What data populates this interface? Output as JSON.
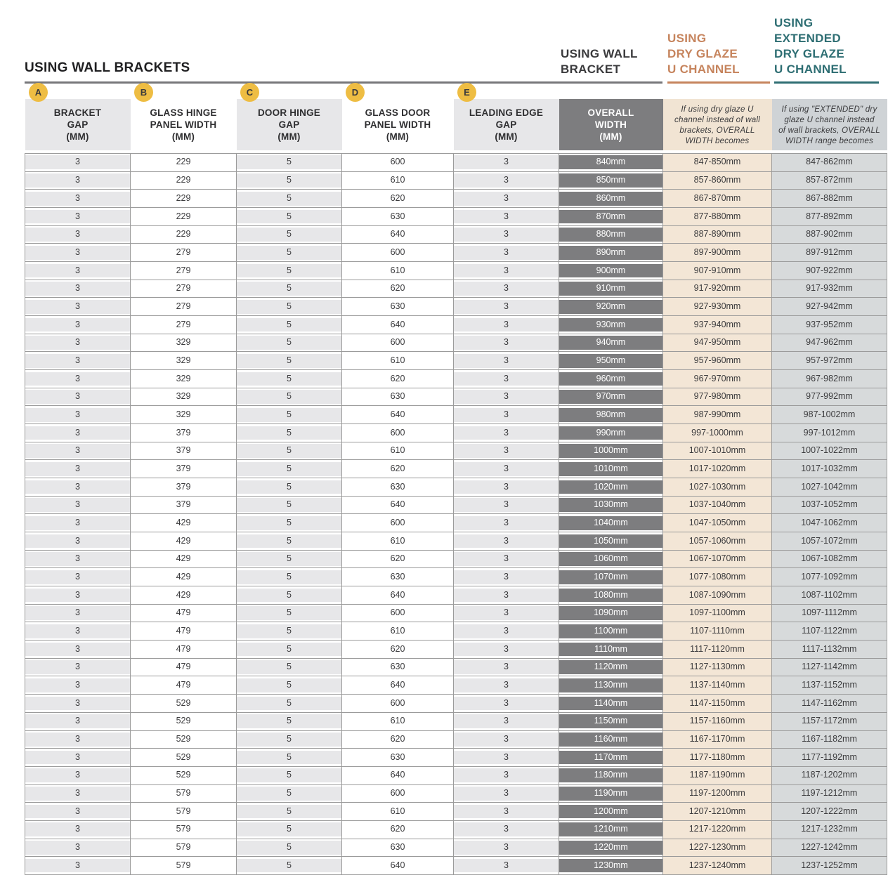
{
  "page_title": "USING WALL BRACKETS",
  "colors": {
    "wall_bracket_heading": "#3a3a3c",
    "dry_glaze_heading": "#c6845d",
    "extended_heading": "#2e6e73",
    "badge": "#eebd43",
    "gap_column_bg": "#e7e7e9",
    "overall_column_bg": "#7d7d7f",
    "dry_glaze_column_bg": "#f3e6d6",
    "extended_column_bg": "#d7dadb",
    "row_border": "#9b9b9b"
  },
  "group_headers": {
    "wall_bracket": {
      "lines": [
        "USING WALL",
        "BRACKET"
      ],
      "color": "#3a3a3c"
    },
    "dry_glaze": {
      "lines": [
        "USING",
        "DRY GLAZE",
        "U CHANNEL"
      ],
      "color": "#c6845d"
    },
    "extended_dry_glaze": {
      "lines": [
        "USING",
        "EXTENDED",
        "DRY GLAZE",
        "U CHANNEL"
      ],
      "color": "#2e6e73"
    }
  },
  "columns": [
    {
      "id": "bracket-gap",
      "badge": "A",
      "lines": [
        "BRACKET",
        "GAP",
        "(MM)"
      ],
      "type": "gap"
    },
    {
      "id": "glass-hinge-panel-width",
      "badge": "B",
      "lines": [
        "GLASS HINGE",
        "PANEL WIDTH",
        "(MM)"
      ],
      "type": "white"
    },
    {
      "id": "door-hinge-gap",
      "badge": "C",
      "lines": [
        "DOOR HINGE",
        "GAP",
        "(MM)"
      ],
      "type": "gap"
    },
    {
      "id": "glass-door-panel-width",
      "badge": "D",
      "lines": [
        "GLASS DOOR",
        "PANEL WIDTH",
        "(MM)"
      ],
      "type": "white"
    },
    {
      "id": "leading-edge-gap",
      "badge": "E",
      "lines": [
        "LEADING EDGE",
        "GAP",
        "(MM)"
      ],
      "type": "gap"
    },
    {
      "id": "overall-width",
      "lines": [
        "OVERALL",
        "WIDTH",
        "(MM)"
      ],
      "type": "overall"
    },
    {
      "id": "dry-glaze-width",
      "lines": [
        "If using dry glaze U",
        "channel instead of wall",
        "brackets, OVERALL",
        "WIDTH becomes"
      ],
      "type": "dry",
      "italic": true
    },
    {
      "id": "extended-dry-glaze-width",
      "lines": [
        "If using \"EXTENDED\" dry",
        "glaze U channel instead",
        "of wall brackets, OVERALL",
        "WIDTH range becomes"
      ],
      "type": "ext",
      "italic": true
    }
  ],
  "table": {
    "rows": [
      [
        "3",
        "229",
        "5",
        "600",
        "3",
        "840mm",
        "847-850mm",
        "847-862mm"
      ],
      [
        "3",
        "229",
        "5",
        "610",
        "3",
        "850mm",
        "857-860mm",
        "857-872mm"
      ],
      [
        "3",
        "229",
        "5",
        "620",
        "3",
        "860mm",
        "867-870mm",
        "867-882mm"
      ],
      [
        "3",
        "229",
        "5",
        "630",
        "3",
        "870mm",
        "877-880mm",
        "877-892mm"
      ],
      [
        "3",
        "229",
        "5",
        "640",
        "3",
        "880mm",
        "887-890mm",
        "887-902mm"
      ],
      [
        "3",
        "279",
        "5",
        "600",
        "3",
        "890mm",
        "897-900mm",
        "897-912mm"
      ],
      [
        "3",
        "279",
        "5",
        "610",
        "3",
        "900mm",
        "907-910mm",
        "907-922mm"
      ],
      [
        "3",
        "279",
        "5",
        "620",
        "3",
        "910mm",
        "917-920mm",
        "917-932mm"
      ],
      [
        "3",
        "279",
        "5",
        "630",
        "3",
        "920mm",
        "927-930mm",
        "927-942mm"
      ],
      [
        "3",
        "279",
        "5",
        "640",
        "3",
        "930mm",
        "937-940mm",
        "937-952mm"
      ],
      [
        "3",
        "329",
        "5",
        "600",
        "3",
        "940mm",
        "947-950mm",
        "947-962mm"
      ],
      [
        "3",
        "329",
        "5",
        "610",
        "3",
        "950mm",
        "957-960mm",
        "957-972mm"
      ],
      [
        "3",
        "329",
        "5",
        "620",
        "3",
        "960mm",
        "967-970mm",
        "967-982mm"
      ],
      [
        "3",
        "329",
        "5",
        "630",
        "3",
        "970mm",
        "977-980mm",
        "977-992mm"
      ],
      [
        "3",
        "329",
        "5",
        "640",
        "3",
        "980mm",
        "987-990mm",
        "987-1002mm"
      ],
      [
        "3",
        "379",
        "5",
        "600",
        "3",
        "990mm",
        "997-1000mm",
        "997-1012mm"
      ],
      [
        "3",
        "379",
        "5",
        "610",
        "3",
        "1000mm",
        "1007-1010mm",
        "1007-1022mm"
      ],
      [
        "3",
        "379",
        "5",
        "620",
        "3",
        "1010mm",
        "1017-1020mm",
        "1017-1032mm"
      ],
      [
        "3",
        "379",
        "5",
        "630",
        "3",
        "1020mm",
        "1027-1030mm",
        "1027-1042mm"
      ],
      [
        "3",
        "379",
        "5",
        "640",
        "3",
        "1030mm",
        "1037-1040mm",
        "1037-1052mm"
      ],
      [
        "3",
        "429",
        "5",
        "600",
        "3",
        "1040mm",
        "1047-1050mm",
        "1047-1062mm"
      ],
      [
        "3",
        "429",
        "5",
        "610",
        "3",
        "1050mm",
        "1057-1060mm",
        "1057-1072mm"
      ],
      [
        "3",
        "429",
        "5",
        "620",
        "3",
        "1060mm",
        "1067-1070mm",
        "1067-1082mm"
      ],
      [
        "3",
        "429",
        "5",
        "630",
        "3",
        "1070mm",
        "1077-1080mm",
        "1077-1092mm"
      ],
      [
        "3",
        "429",
        "5",
        "640",
        "3",
        "1080mm",
        "1087-1090mm",
        "1087-1102mm"
      ],
      [
        "3",
        "479",
        "5",
        "600",
        "3",
        "1090mm",
        "1097-1100mm",
        "1097-1112mm"
      ],
      [
        "3",
        "479",
        "5",
        "610",
        "3",
        "1100mm",
        "1107-1110mm",
        "1107-1122mm"
      ],
      [
        "3",
        "479",
        "5",
        "620",
        "3",
        "1110mm",
        "1117-1120mm",
        "1117-1132mm"
      ],
      [
        "3",
        "479",
        "5",
        "630",
        "3",
        "1120mm",
        "1127-1130mm",
        "1127-1142mm"
      ],
      [
        "3",
        "479",
        "5",
        "640",
        "3",
        "1130mm",
        "1137-1140mm",
        "1137-1152mm"
      ],
      [
        "3",
        "529",
        "5",
        "600",
        "3",
        "1140mm",
        "1147-1150mm",
        "1147-1162mm"
      ],
      [
        "3",
        "529",
        "5",
        "610",
        "3",
        "1150mm",
        "1157-1160mm",
        "1157-1172mm"
      ],
      [
        "3",
        "529",
        "5",
        "620",
        "3",
        "1160mm",
        "1167-1170mm",
        "1167-1182mm"
      ],
      [
        "3",
        "529",
        "5",
        "630",
        "3",
        "1170mm",
        "1177-1180mm",
        "1177-1192mm"
      ],
      [
        "3",
        "529",
        "5",
        "640",
        "3",
        "1180mm",
        "1187-1190mm",
        "1187-1202mm"
      ],
      [
        "3",
        "579",
        "5",
        "600",
        "3",
        "1190mm",
        "1197-1200mm",
        "1197-1212mm"
      ],
      [
        "3",
        "579",
        "5",
        "610",
        "3",
        "1200mm",
        "1207-1210mm",
        "1207-1222mm"
      ],
      [
        "3",
        "579",
        "5",
        "620",
        "3",
        "1210mm",
        "1217-1220mm",
        "1217-1232mm"
      ],
      [
        "3",
        "579",
        "5",
        "630",
        "3",
        "1220mm",
        "1227-1230mm",
        "1227-1242mm"
      ],
      [
        "3",
        "579",
        "5",
        "640",
        "3",
        "1230mm",
        "1237-1240mm",
        "1237-1252mm"
      ]
    ]
  }
}
